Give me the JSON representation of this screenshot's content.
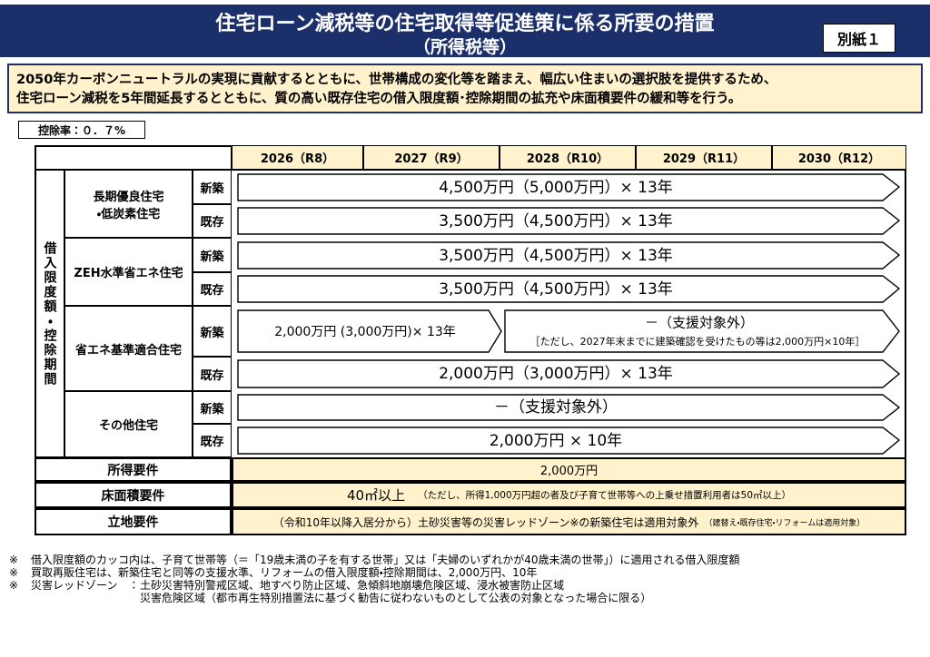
{
  "header": {
    "title": "住宅ローン減税等の住宅取得等促進策に係る所要の措置",
    "subtitle": "（所得税等）",
    "attachment": "別紙１"
  },
  "intro": [
    "2050年カーボンニュートラルの実現に貢献するとともに、世帯構成の変化等を踏まえ、幅広い住まいの選択肢を提供するため、",
    "住宅ローン減税を5年間延長するとともに、質の高い既存住宅の借入限度額･控除期間の拡充や床面積要件の緩和等を行う。"
  ],
  "deduction_rate": "控除率：０．７%",
  "table": {
    "columns": [
      "2026（R8）",
      "2027（R9）",
      "2028（R10）",
      "2029（R11）",
      "2030（R12）"
    ],
    "side_label": "借入限度額・控除期間",
    "groups": [
      {
        "label": [
          "長期優良住宅",
          "・低炭素住宅"
        ],
        "rows": [
          {
            "kind": "新築",
            "arrows": [
              {
                "text": "4,500万円（5,000万円）× 13年"
              }
            ]
          },
          {
            "kind": "既存",
            "arrows": [
              {
                "text": "3,500万円（4,500万円）× 13年"
              }
            ]
          }
        ]
      },
      {
        "label": [
          "ZEH水準省エネ住宅"
        ],
        "rows": [
          {
            "kind": "新築",
            "arrows": [
              {
                "text": "3,500万円（4,500万円）× 13年"
              }
            ]
          },
          {
            "kind": "既存",
            "arrows": [
              {
                "text": "3,500万円（4,500万円）× 13年"
              }
            ]
          }
        ]
      },
      {
        "label": [
          "省エネ基準適合住宅"
        ],
        "rows": [
          {
            "kind": "新築",
            "arrows": [
              {
                "text": "2,000万円 (3,000万円)× 13年"
              },
              {
                "text": "－（支援対象外）",
                "note": "［ただし、2027年末までに建築確認を受けたもの等は2,000万円×10年］"
              }
            ]
          },
          {
            "kind": "既存",
            "arrows": [
              {
                "text": "2,000万円（3,000万円）× 13年"
              }
            ]
          }
        ]
      },
      {
        "label": [
          "その他住宅"
        ],
        "rows": [
          {
            "kind": "新築",
            "arrows": [
              {
                "text": "－（支援対象外）"
              }
            ]
          },
          {
            "kind": "既存",
            "arrows": [
              {
                "text": "2,000万円 × 10年"
              }
            ]
          }
        ]
      }
    ],
    "requirements": [
      {
        "label": "所得要件",
        "text": "2,000万円"
      },
      {
        "label": "床面積要件",
        "text": "40㎡以上",
        "note": "（ただし、所得1,000万円超の者及び子育て世帯等への上乗せ措置利用者は50㎡以上）"
      },
      {
        "label": "立地要件",
        "text": "（令和10年以降入居分から）土砂災害等の災害レッドゾーン※の新築住宅は適用対象外",
        "note": "（建替え・既存住宅・リフォームは適用対象）"
      }
    ]
  },
  "footnotes": [
    {
      "mark": "※",
      "text": "借入限度額のカッコ内は、子育て世帯等（＝「19歳未満の子を有する世帯」又は「夫婦のいずれかが40歳未満の世帯」）に適用される借入限度額"
    },
    {
      "mark": "※",
      "text": "買取再販住宅は、新築住宅と同等の支援水準、リフォームの借入限度額・控除期間は、2,000万円、10年"
    },
    {
      "mark": "※",
      "term": "災害レッドゾーン　：",
      "lines": [
        "土砂災害特別警戒区域、地すべり防止区域、急傾斜地崩壊危険区域、浸水被害防止区域",
        "災害危険区域（都市再生特別措置法に基づく勧告に従わないものとして公表の対象となった場合に限る）"
      ]
    }
  ]
}
